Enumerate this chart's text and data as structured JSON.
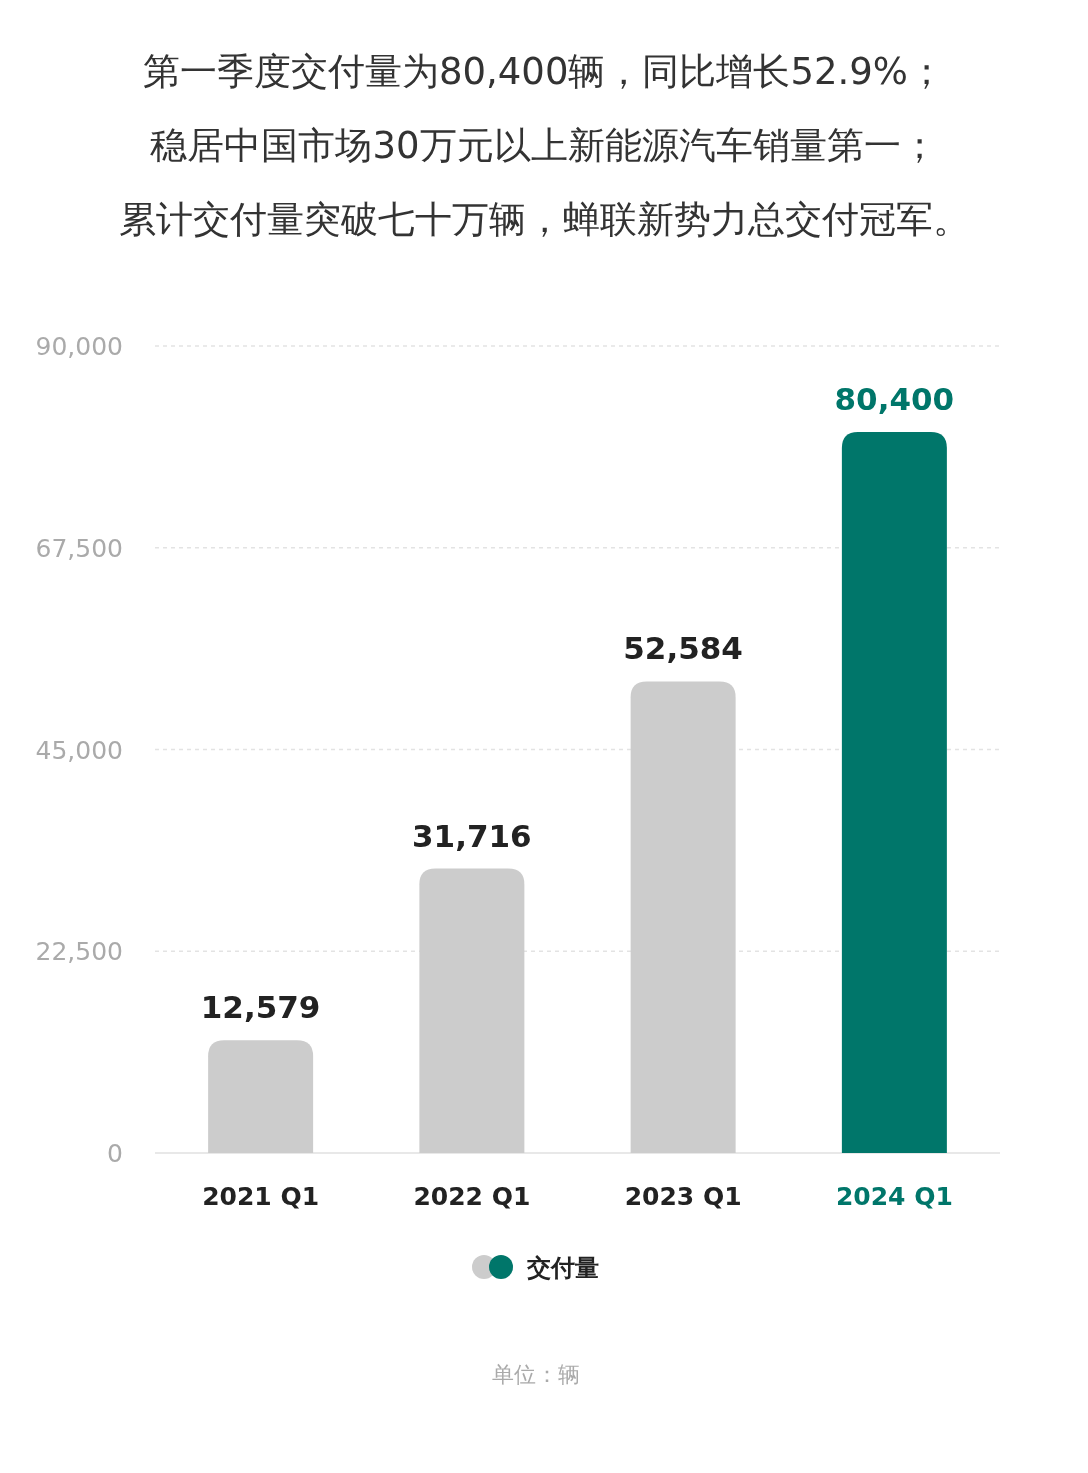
{
  "chart_data": {
    "type": "bar",
    "title": "第一季度交付量为80,400辆，同比增长52.9%；",
    "subtitle": "稳居中国市场30万元以上新能源汽车销量第一；",
    "categories": [
      "2021 Q1",
      "2022 Q1",
      "2023 Q1",
      "2024 Q1"
    ],
    "series": [
      {
        "name": "交付量",
        "values": [
          12579,
          31716,
          52584,
          80400
        ],
        "value_labels": [
          "12,579",
          "31,716",
          "52,584",
          "80,400"
        ],
        "colors": [
          "#cccccc",
          "#cccccc",
          "#cccccc",
          "#00766a"
        ]
      }
    ],
    "ylim": [
      0,
      90000
    ],
    "yticks": [
      0,
      {
        "value": 22500,
        "label": "22,500"
      },
      {
        "value": 45000,
        "label": "45,000"
      },
      {
        "value": 67500,
        "label": "67,500"
      },
      {
        "value": 90000,
        "label": "90,000"
      }
    ],
    "grid": "y",
    "legend": "bottom",
    "annotations": [
      "累计交付量突破七十万辆，蝉联新势力总交付冠军。",
      "单位：辆"
    ]
  }
}
